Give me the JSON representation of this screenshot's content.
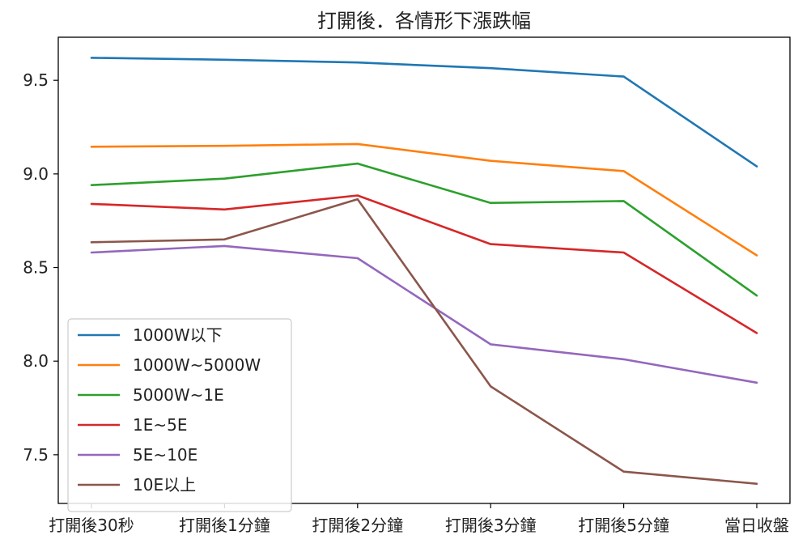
{
  "chart_data": {
    "type": "line",
    "title": "打開後．各情形下漲跌幅",
    "xlabel": "",
    "ylabel": "",
    "categories": [
      "打開後30秒",
      "打開後1分鐘",
      "打開後2分鐘",
      "打開後3分鐘",
      "打開後5分鐘",
      "當日收盤"
    ],
    "ylim": [
      7.24,
      9.73
    ],
    "yticks": [
      7.5,
      8.0,
      8.5,
      9.0,
      9.5
    ],
    "ytick_labels": [
      "7.5",
      "8.0",
      "8.5",
      "9.0",
      "9.5"
    ],
    "grid": false,
    "legend_position": "lower-left",
    "series": [
      {
        "name": "1000W以下",
        "color": "#1f77b4",
        "values": [
          9.62,
          9.61,
          9.595,
          9.565,
          9.52,
          9.04
        ]
      },
      {
        "name": "1000W~5000W",
        "color": "#ff7f0e",
        "values": [
          9.145,
          9.15,
          9.16,
          9.07,
          9.015,
          8.565
        ]
      },
      {
        "name": "5000W~1E",
        "color": "#2ca02c",
        "values": [
          8.94,
          8.975,
          9.055,
          8.845,
          8.855,
          8.35
        ]
      },
      {
        "name": "1E~5E",
        "color": "#d62728",
        "values": [
          8.84,
          8.81,
          8.885,
          8.625,
          8.58,
          8.15
        ]
      },
      {
        "name": "5E~10E",
        "color": "#9467bd",
        "values": [
          8.58,
          8.615,
          8.55,
          8.09,
          8.01,
          7.885
        ]
      },
      {
        "name": "10E以上",
        "color": "#8c564b",
        "values": [
          8.635,
          8.65,
          8.865,
          7.865,
          7.41,
          7.345
        ]
      }
    ]
  }
}
